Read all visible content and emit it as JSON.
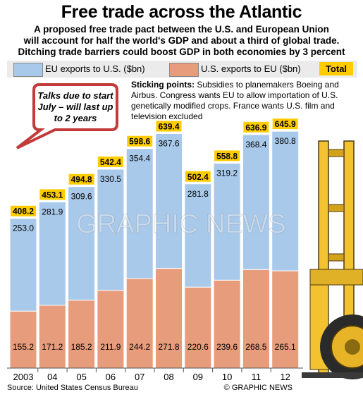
{
  "header": {
    "title": "Free trade across the Atlantic",
    "subtitle_lines": [
      "A proposed free trade pact between the U.S. and European Union",
      "will account for half the world's GDP and about a third of global trade.",
      "Ditching trade barriers could boost GDP in both economies by 3 percent"
    ]
  },
  "legend": {
    "eu_label": "EU exports to U.S. ($bn)",
    "us_label": "U.S. exports to EU ($bn)",
    "total_label": "Total"
  },
  "annotation": {
    "bubble": "Talks due to start July – will last up to 2 years",
    "sticking_title": "Sticking points:",
    "sticking_body": "Subsidies to planemakers Boeing and Airbus. Congress wants EU to allow importation of U.S. genetically modified crops. France wants U.S. film and television excluded"
  },
  "footer": {
    "source": "Source: United States Census Bureau",
    "credit": "© GRAPHIC NEWS"
  },
  "watermark": "GRAPHIC NEWS",
  "colors": {
    "eu": "#a9c9ea",
    "us": "#e79c7c",
    "total": "#ffcc00",
    "bubble": "#c23a3a"
  },
  "chart_data": {
    "type": "bar",
    "stacked": true,
    "categories": [
      "2003",
      "04",
      "05",
      "06",
      "07",
      "08",
      "09",
      "10",
      "11",
      "12"
    ],
    "series": [
      {
        "name": "U.S. exports to EU ($bn)",
        "values": [
          155.2,
          171.2,
          185.2,
          211.9,
          244.2,
          271.8,
          220.6,
          239.6,
          268.5,
          265.1
        ]
      },
      {
        "name": "EU exports to U.S. ($bn)",
        "values": [
          253.0,
          281.9,
          309.6,
          330.5,
          354.4,
          367.6,
          281.8,
          319.2,
          368.4,
          380.8
        ]
      }
    ],
    "labels": {
      "us": [
        "155.2",
        "171.2",
        "185.2",
        "211.9",
        "244.2",
        "271.8",
        "220.6",
        "239.6",
        "268.5",
        "265.1"
      ],
      "eu": [
        "253.0",
        "281.9",
        "309.6",
        "330.5",
        "354.4",
        "367.6",
        "281.8",
        "319.2",
        "368.4",
        "380.8"
      ],
      "total": [
        "408.2",
        "453.1",
        "494.8",
        "542.4",
        "598.6",
        "639.4",
        "502.4",
        "558.8",
        "636.9",
        "645.9"
      ]
    },
    "totals": [
      408.2,
      453.1,
      494.8,
      542.4,
      598.6,
      639.4,
      502.4,
      558.8,
      636.9,
      645.9
    ],
    "ylim": [
      0,
      700
    ],
    "grid": false,
    "legend_position": "top"
  }
}
